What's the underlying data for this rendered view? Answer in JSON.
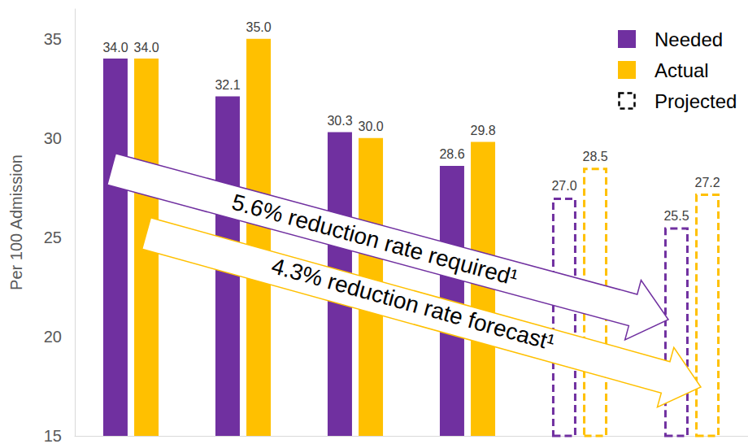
{
  "chart_data": {
    "type": "bar",
    "categories": [
      null,
      null,
      null,
      null,
      null,
      null
    ],
    "series": [
      {
        "name": "Needed",
        "color": "#7030a0",
        "values": [
          34.0,
          32.1,
          30.3,
          28.6,
          27.0,
          25.5
        ],
        "value_labels": [
          "34.0",
          "32.1",
          "30.3",
          "28.6",
          "27.0",
          "25.5"
        ]
      },
      {
        "name": "Actual",
        "color": "#ffc000",
        "values": [
          34.0,
          35.0,
          30.0,
          29.8,
          28.5,
          27.2
        ],
        "value_labels": [
          "34.0",
          "35.0",
          "30.0",
          "29.8",
          "28.5",
          "27.2"
        ]
      }
    ],
    "projected": [
      false,
      false,
      false,
      false,
      true,
      true
    ],
    "projected_label": "Projected",
    "y_label": "Per 100 Admission",
    "ylim": [
      15,
      36.5
    ],
    "yticks": [
      15,
      20,
      25,
      30,
      35
    ],
    "grid": false,
    "legend": "upper right",
    "data_labels": true,
    "annotations": [
      {
        "text": "5.6% reduction rate required¹",
        "series": "Needed"
      },
      {
        "text": "4.3% reduction rate forecast¹",
        "series": "Actual"
      }
    ]
  }
}
